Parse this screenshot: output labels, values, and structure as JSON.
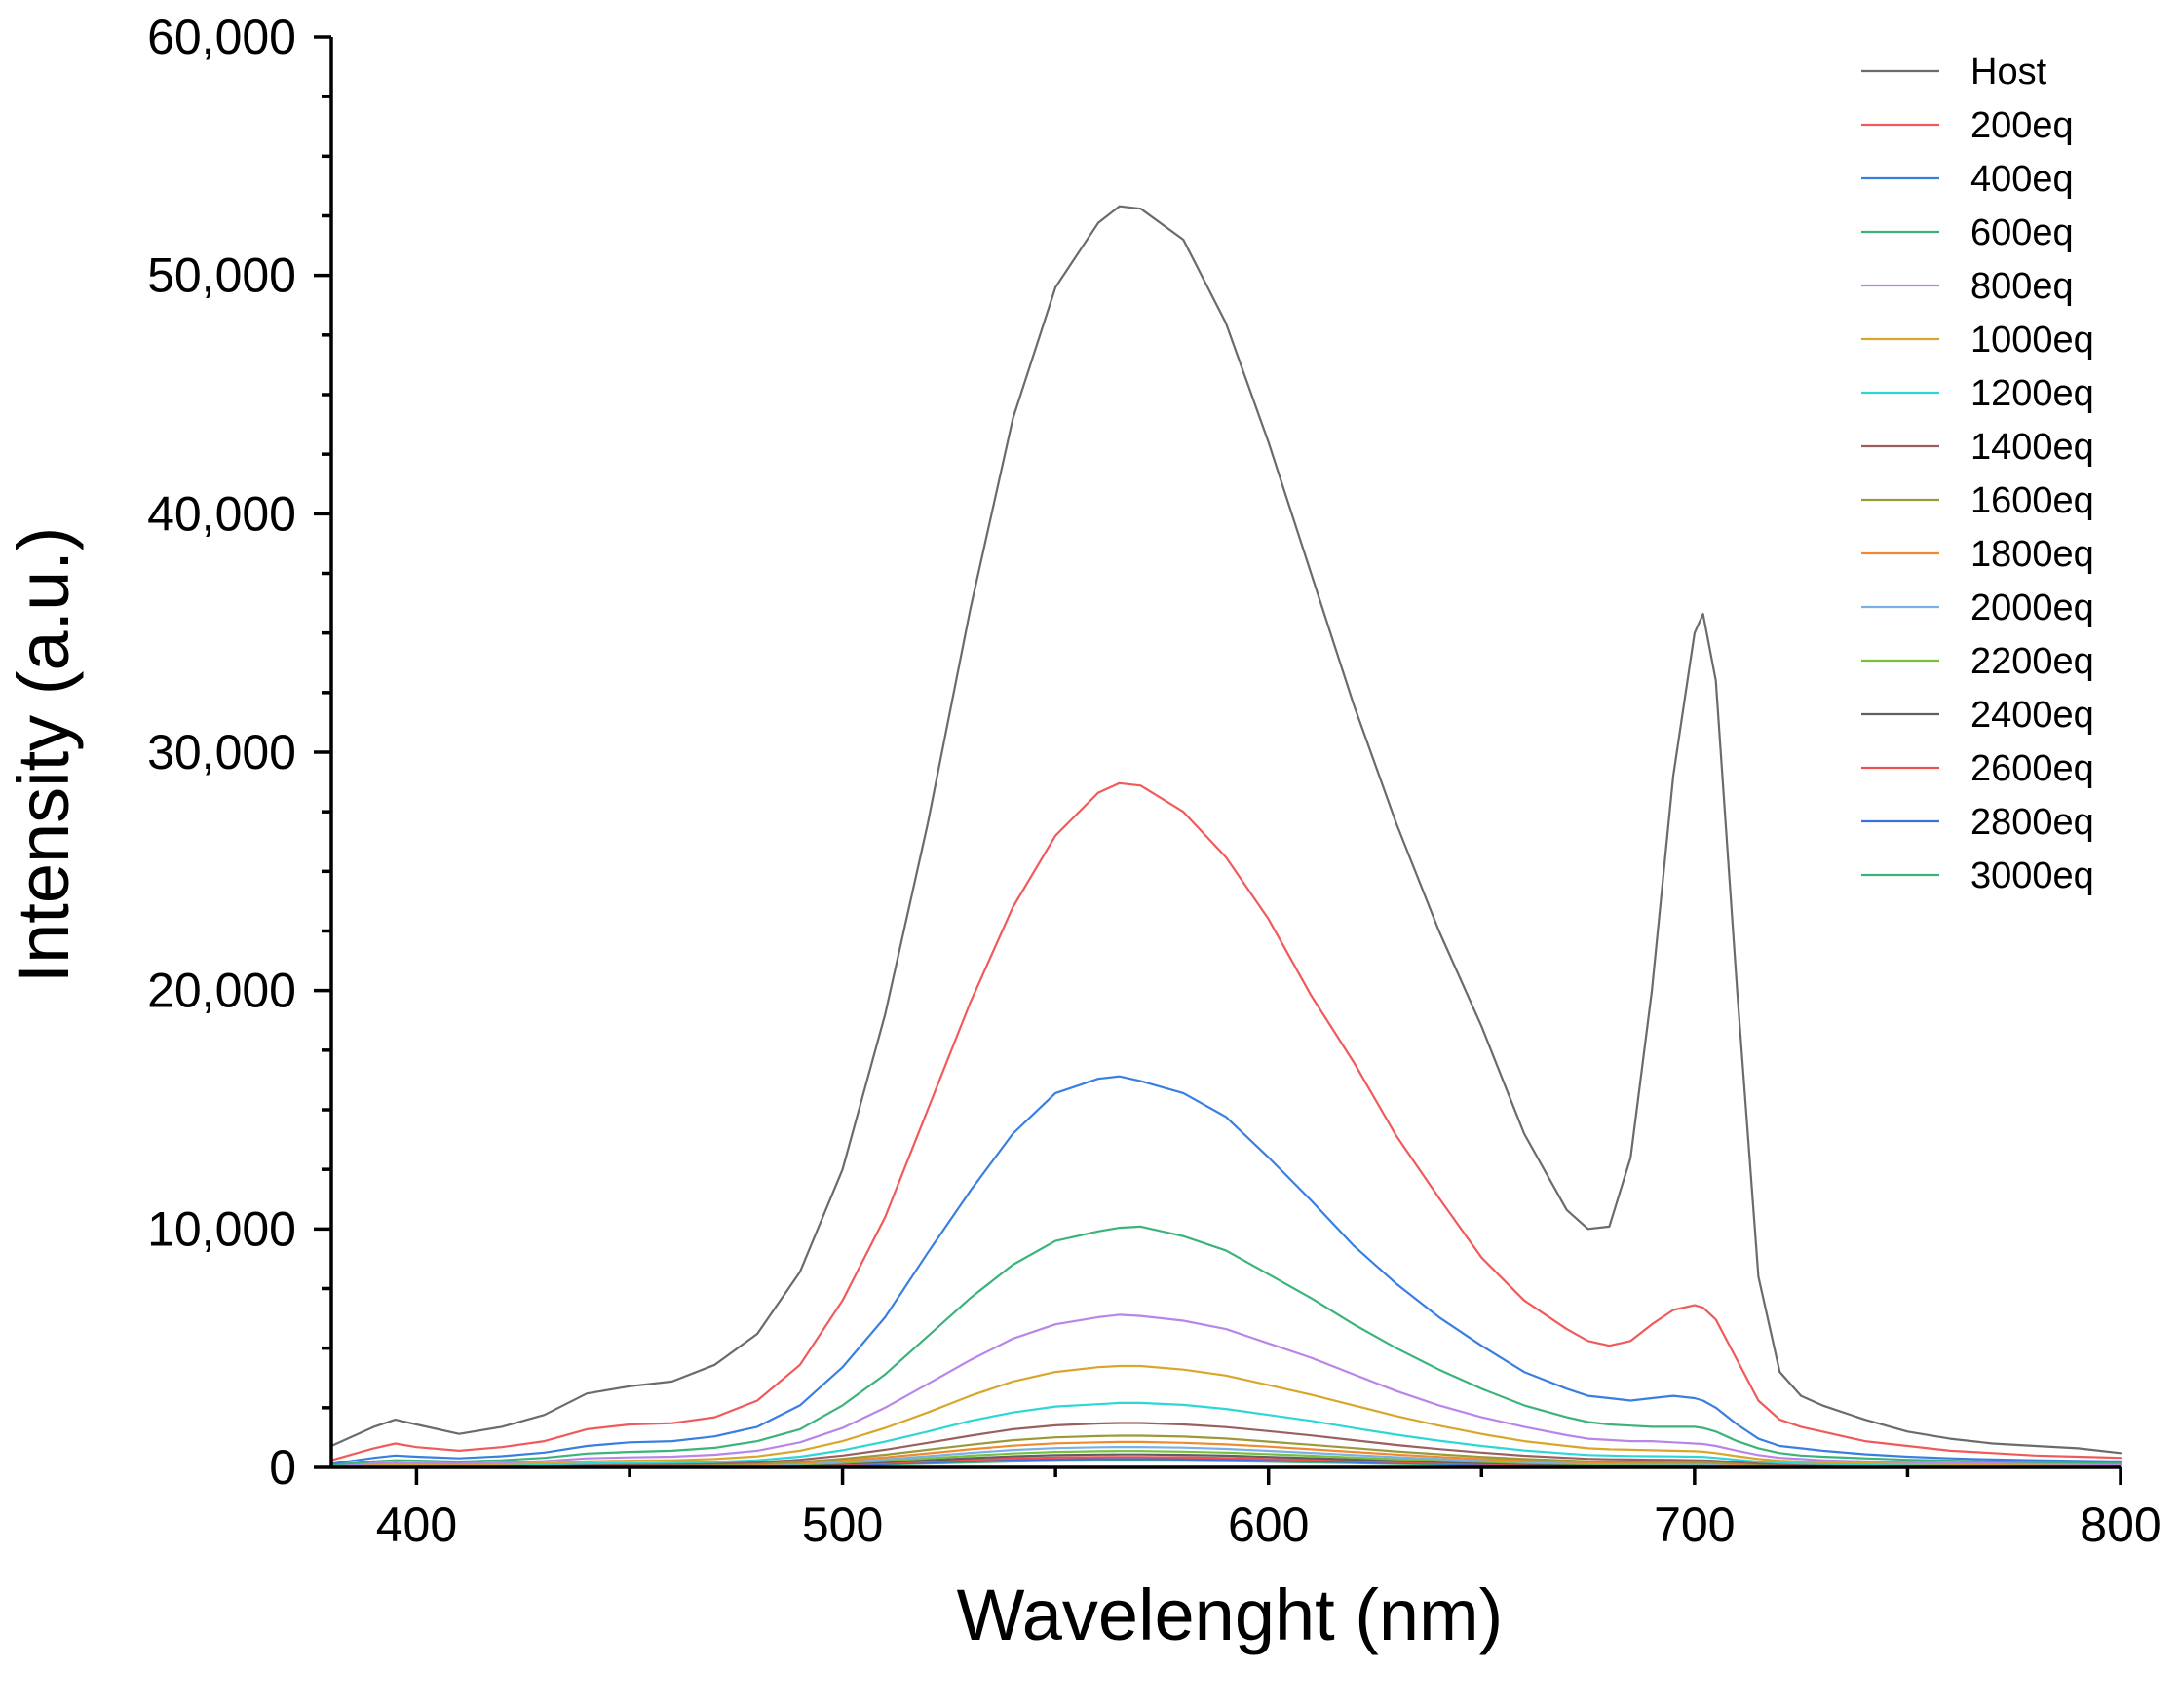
{
  "chart_data": {
    "type": "line",
    "title": "",
    "xlabel": "Wavelenght (nm)",
    "ylabel": "Intensity (a.u.)",
    "xlim": [
      380,
      800
    ],
    "ylim": [
      0,
      60000
    ],
    "x_ticks": [
      400,
      500,
      600,
      700,
      800
    ],
    "x_tick_labels": [
      "400",
      "500",
      "600",
      "700",
      "800"
    ],
    "y_ticks": [
      0,
      10000,
      20000,
      30000,
      40000,
      50000,
      60000
    ],
    "y_tick_labels": [
      "0",
      "10,000",
      "20,000",
      "30,000",
      "40,000",
      "50,000",
      "60,000"
    ],
    "grid": false,
    "legend_position": "top-right",
    "x": [
      380,
      390,
      395,
      400,
      410,
      420,
      430,
      440,
      450,
      460,
      470,
      480,
      490,
      500,
      510,
      520,
      530,
      540,
      550,
      560,
      565,
      570,
      580,
      590,
      600,
      610,
      620,
      630,
      640,
      650,
      660,
      670,
      675,
      680,
      685,
      690,
      695,
      700,
      702,
      705,
      710,
      715,
      720,
      725,
      730,
      740,
      750,
      760,
      770,
      780,
      790,
      800
    ],
    "series": [
      {
        "name": "Host",
        "color": "#6b6b6b",
        "values": [
          900,
          1700,
          2000,
          1800,
          1400,
          1700,
          2200,
          3100,
          3400,
          3600,
          4300,
          5600,
          8200,
          12500,
          19000,
          27000,
          36000,
          44000,
          49500,
          52200,
          52900,
          52800,
          51500,
          48000,
          43000,
          37500,
          32000,
          27000,
          22500,
          18500,
          14000,
          10800,
          10000,
          10100,
          13000,
          20000,
          29000,
          35000,
          35800,
          33000,
          20000,
          8000,
          4000,
          3000,
          2600,
          2000,
          1500,
          1200,
          1000,
          900,
          800,
          600
        ]
      },
      {
        "name": "200eq",
        "color": "#f05a5a",
        "values": [
          300,
          800,
          1000,
          850,
          700,
          850,
          1100,
          1600,
          1800,
          1850,
          2100,
          2800,
          4300,
          7000,
          10500,
          15000,
          19500,
          23500,
          26500,
          28300,
          28700,
          28600,
          27500,
          25600,
          23000,
          19800,
          17000,
          13900,
          11300,
          8800,
          7000,
          5800,
          5300,
          5100,
          5300,
          6000,
          6600,
          6800,
          6700,
          6200,
          4500,
          2800,
          2000,
          1700,
          1500,
          1100,
          900,
          700,
          600,
          500,
          450,
          400
        ]
      },
      {
        "name": "400eq",
        "color": "#3a7fe0",
        "values": [
          150,
          400,
          500,
          450,
          380,
          470,
          620,
          900,
          1050,
          1100,
          1300,
          1700,
          2600,
          4200,
          6300,
          9000,
          11600,
          14000,
          15700,
          16300,
          16400,
          16200,
          15700,
          14700,
          13000,
          11200,
          9300,
          7700,
          6300,
          5100,
          4000,
          3300,
          3000,
          2900,
          2800,
          2900,
          3000,
          2900,
          2800,
          2500,
          1800,
          1200,
          900,
          800,
          700,
          550,
          450,
          380,
          330,
          300,
          270,
          250
        ]
      },
      {
        "name": "600eq",
        "color": "#3cb37a",
        "values": [
          100,
          250,
          300,
          280,
          240,
          300,
          400,
          580,
          650,
          700,
          820,
          1100,
          1600,
          2600,
          3900,
          5500,
          7100,
          8500,
          9500,
          9900,
          10050,
          10100,
          9700,
          9100,
          8100,
          7100,
          6000,
          5000,
          4100,
          3300,
          2600,
          2100,
          1900,
          1800,
          1750,
          1700,
          1700,
          1700,
          1650,
          1500,
          1100,
          800,
          600,
          500,
          450,
          380,
          320,
          280,
          250,
          220,
          200,
          180
        ]
      },
      {
        "name": "800eq",
        "color": "#b886e8",
        "values": [
          70,
          160,
          200,
          180,
          160,
          200,
          260,
          380,
          420,
          450,
          530,
          700,
          1050,
          1650,
          2500,
          3500,
          4500,
          5400,
          6000,
          6300,
          6400,
          6350,
          6150,
          5800,
          5200,
          4600,
          3900,
          3200,
          2600,
          2100,
          1700,
          1350,
          1200,
          1150,
          1100,
          1100,
          1050,
          1000,
          980,
          900,
          700,
          520,
          400,
          350,
          300,
          250,
          220,
          190,
          170,
          150,
          140,
          120
        ]
      },
      {
        "name": "1000eq",
        "color": "#d9a62c",
        "values": [
          50,
          110,
          130,
          120,
          110,
          130,
          170,
          250,
          280,
          300,
          350,
          460,
          700,
          1100,
          1650,
          2300,
          3000,
          3600,
          4000,
          4200,
          4250,
          4250,
          4100,
          3850,
          3450,
          3050,
          2600,
          2150,
          1750,
          1400,
          1100,
          900,
          800,
          760,
          740,
          720,
          700,
          680,
          660,
          600,
          470,
          350,
          280,
          240,
          210,
          170,
          150,
          130,
          115,
          105,
          95,
          85
        ]
      },
      {
        "name": "1200eq",
        "color": "#2ed6d6",
        "values": [
          30,
          70,
          85,
          80,
          70,
          85,
          110,
          160,
          180,
          195,
          225,
          300,
          450,
          720,
          1080,
          1500,
          1950,
          2300,
          2550,
          2650,
          2700,
          2700,
          2620,
          2450,
          2200,
          1950,
          1650,
          1370,
          1120,
          900,
          710,
          580,
          520,
          500,
          480,
          470,
          460,
          450,
          440,
          400,
          320,
          240,
          190,
          160,
          140,
          115,
          100,
          90,
          80,
          70,
          65,
          60
        ]
      },
      {
        "name": "1400eq",
        "color": "#9a6060",
        "values": [
          20,
          50,
          60,
          55,
          50,
          60,
          80,
          110,
          125,
          135,
          160,
          210,
          320,
          500,
          740,
          1030,
          1330,
          1600,
          1760,
          1840,
          1860,
          1860,
          1800,
          1690,
          1520,
          1340,
          1140,
          940,
          770,
          620,
          490,
          400,
          360,
          340,
          330,
          320,
          310,
          300,
          290,
          270,
          215,
          160,
          130,
          110,
          95,
          80,
          70,
          60,
          55,
          50,
          45,
          40
        ]
      },
      {
        "name": "1600eq",
        "color": "#9a9a3a",
        "values": [
          15,
          35,
          42,
          40,
          35,
          42,
          55,
          80,
          90,
          95,
          115,
          150,
          225,
          360,
          530,
          740,
          950,
          1140,
          1260,
          1310,
          1330,
          1330,
          1290,
          1210,
          1080,
          950,
          810,
          670,
          550,
          440,
          350,
          285,
          255,
          245,
          235,
          230,
          225,
          215,
          210,
          195,
          155,
          115,
          90,
          78,
          68,
          57,
          50,
          44,
          40,
          36,
          33,
          30
        ]
      },
      {
        "name": "1800eq",
        "color": "#f08a30",
        "values": [
          12,
          28,
          34,
          32,
          28,
          34,
          44,
          63,
          72,
          78,
          92,
          120,
          180,
          290,
          420,
          590,
          760,
          910,
          1010,
          1050,
          1065,
          1065,
          1030,
          965,
          870,
          760,
          650,
          540,
          440,
          355,
          280,
          230,
          205,
          195,
          190,
          185,
          180,
          175,
          170,
          155,
          125,
          92,
          72,
          62,
          55,
          46,
          40,
          35,
          32,
          29,
          26,
          24
        ]
      },
      {
        "name": "2000eq",
        "color": "#7ab0e8",
        "values": [
          10,
          22,
          27,
          25,
          22,
          27,
          35,
          50,
          57,
          62,
          73,
          96,
          145,
          230,
          340,
          470,
          610,
          730,
          810,
          845,
          855,
          855,
          828,
          776,
          695,
          610,
          520,
          430,
          352,
          284,
          225,
          184,
          164,
          156,
          152,
          148,
          144,
          140,
          136,
          124,
          100,
          74,
          58,
          50,
          44,
          37,
          32,
          28,
          26,
          23,
          21,
          19
        ]
      },
      {
        "name": "2200eq",
        "color": "#7ac040",
        "values": [
          8,
          18,
          22,
          20,
          18,
          22,
          28,
          40,
          46,
          50,
          59,
          77,
          116,
          185,
          272,
          380,
          490,
          585,
          650,
          678,
          686,
          686,
          664,
          622,
          557,
          490,
          417,
          345,
          282,
          228,
          180,
          148,
          132,
          125,
          122,
          119,
          116,
          112,
          109,
          100,
          80,
          59,
          46,
          40,
          35,
          30,
          26,
          23,
          21,
          19,
          17,
          15
        ]
      },
      {
        "name": "2400eq",
        "color": "#606060",
        "values": [
          6,
          14,
          17,
          16,
          14,
          17,
          22,
          32,
          36,
          40,
          47,
          61,
          92,
          147,
          216,
          302,
          390,
          465,
          517,
          539,
          545,
          545,
          527,
          494,
          442,
          389,
          331,
          274,
          224,
          181,
          143,
          117,
          105,
          99,
          97,
          94,
          92,
          89,
          86,
          79,
          63,
          47,
          37,
          32,
          28,
          24,
          21,
          18,
          17,
          15,
          14,
          12
        ]
      },
      {
        "name": "2600eq",
        "color": "#f05050",
        "values": [
          5,
          11,
          14,
          13,
          11,
          14,
          18,
          26,
          29,
          32,
          38,
          50,
          74,
          118,
          174,
          243,
          314,
          374,
          416,
          434,
          439,
          439,
          424,
          398,
          356,
          313,
          266,
          220,
          180,
          146,
          115,
          94,
          84,
          80,
          78,
          76,
          74,
          72,
          70,
          64,
          51,
          38,
          30,
          26,
          23,
          19,
          17,
          15,
          13,
          12,
          11,
          10
        ]
      },
      {
        "name": "2800eq",
        "color": "#3a70e0",
        "values": [
          4,
          9,
          11,
          10,
          9,
          11,
          14,
          21,
          24,
          26,
          31,
          40,
          60,
          96,
          141,
          197,
          254,
          303,
          337,
          351,
          355,
          355,
          343,
          322,
          288,
          253,
          216,
          178,
          146,
          118,
          93,
          76,
          68,
          65,
          63,
          61,
          60,
          58,
          56,
          52,
          41,
          31,
          24,
          21,
          18,
          16,
          14,
          12,
          11,
          10,
          9,
          8
        ]
      },
      {
        "name": "3000eq",
        "color": "#3cb37a",
        "values": [
          3,
          7,
          9,
          8,
          7,
          9,
          12,
          17,
          19,
          21,
          25,
          33,
          49,
          78,
          114,
          160,
          206,
          246,
          273,
          285,
          288,
          288,
          279,
          261,
          234,
          205,
          175,
          145,
          118,
          96,
          76,
          62,
          55,
          52,
          51,
          50,
          48,
          47,
          46,
          42,
          33,
          25,
          20,
          17,
          15,
          13,
          11,
          10,
          9,
          8,
          7,
          6
        ]
      }
    ]
  }
}
